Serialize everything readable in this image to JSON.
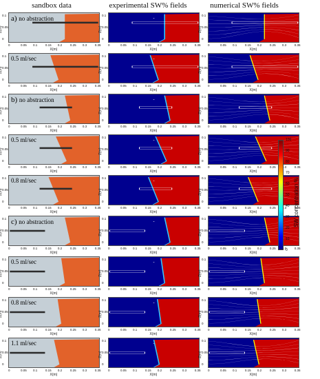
{
  "headers": {
    "col1": "sandbox data",
    "col2": "experimental SW% fields",
    "col3": "numerical SW% fields"
  },
  "rows": [
    {
      "section": "a)",
      "label": "no abstraction",
      "bar": [
        0.26,
        0.99
      ],
      "barY": 0.33,
      "iface": [
        0.62,
        0.04,
        0.62,
        0.9
      ]
    },
    {
      "section": "",
      "label": "0.5 ml/sec",
      "bar": [
        0.26,
        0.99
      ],
      "barY": 0.45,
      "iface": [
        0.46,
        0.05,
        0.55,
        0.9
      ]
    },
    {
      "section": "b)",
      "label": "no abstraction",
      "bar": [
        0.34,
        0.7
      ],
      "barY": 0.45,
      "iface": [
        0.62,
        0.04,
        0.68,
        0.9
      ]
    },
    {
      "section": "",
      "label": "0.5 ml/sec",
      "bar": [
        0.34,
        0.7
      ],
      "barY": 0.45,
      "iface": [
        0.52,
        0.05,
        0.64,
        0.9
      ]
    },
    {
      "section": "",
      "label": "0.8 ml/sec",
      "bar": [
        0.34,
        0.7
      ],
      "barY": 0.45,
      "iface": [
        0.44,
        0.05,
        0.55,
        0.9
      ]
    },
    {
      "section": "c)",
      "label": "no abstraction",
      "bar": [
        0.01,
        0.4
      ],
      "barY": 0.5,
      "iface": [
        0.62,
        0.04,
        0.68,
        0.9
      ]
    },
    {
      "section": "",
      "label": "0.5 ml/sec",
      "bar": [
        0.01,
        0.4
      ],
      "barY": 0.5,
      "iface": [
        0.58,
        0.04,
        0.62,
        0.9
      ]
    },
    {
      "section": "",
      "label": "0.8 ml/sec",
      "bar": [
        0.01,
        0.4
      ],
      "barY": 0.5,
      "iface": [
        0.54,
        0.05,
        0.58,
        0.9
      ]
    },
    {
      "section": "",
      "label": "1.1 ml/sec",
      "bar": [
        0.01,
        0.4
      ],
      "barY": 0.5,
      "iface": [
        0.5,
        0.05,
        0.56,
        0.9
      ]
    }
  ],
  "axes": {
    "xlabel": "X(m)",
    "ylabel": "Z(m)",
    "xticks": [
      "0",
      "0.05",
      "0.1",
      "0.15",
      "0.2",
      "0.25",
      "0.3",
      "0.35"
    ],
    "yticks": [
      "0.1",
      "0.05",
      "0"
    ]
  },
  "colorbar": {
    "title": "SW concentration %",
    "ticks": [
      "100",
      "90",
      "80",
      "70",
      "60",
      "50",
      "40",
      "30",
      "20",
      "10",
      "0"
    ]
  },
  "colors": {
    "fresh": "#00008f",
    "saline": "#c90000",
    "sand": "#c5cfd6",
    "dye": "#e2622a"
  }
}
